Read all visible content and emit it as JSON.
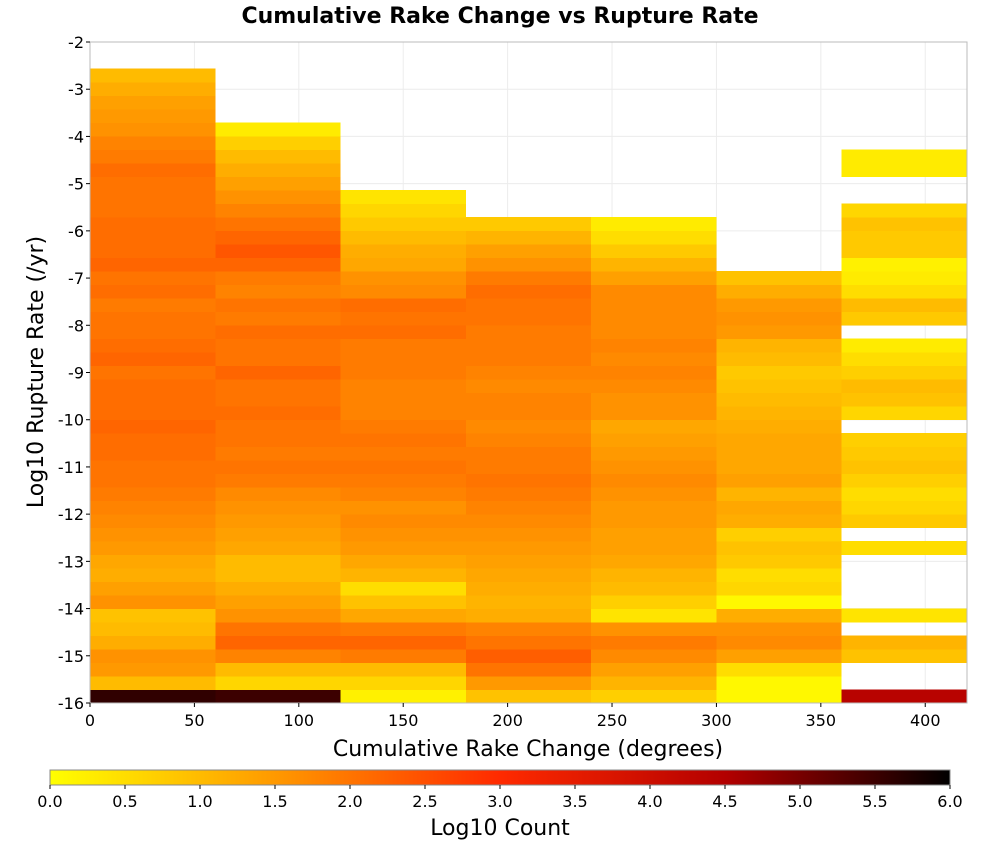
{
  "chart_data": {
    "type": "heatmap",
    "title": "Cumulative Rake Change vs Rupture Rate",
    "xlabel": "Cumulative Rake Change (degrees)",
    "ylabel": "Log10 Rupture Rate (/yr)",
    "xlim": [
      0,
      420
    ],
    "ylim": [
      -16,
      -2
    ],
    "x_ticks": [
      "0",
      "50",
      "100",
      "150",
      "200",
      "250",
      "300",
      "350",
      "400"
    ],
    "y_ticks": [
      "-2",
      "-3",
      "-4",
      "-5",
      "-6",
      "-7",
      "-8",
      "-9",
      "-10",
      "-11",
      "-12",
      "-13",
      "-14",
      "-15",
      "-16"
    ],
    "x_bin_edges": [
      0,
      60,
      120,
      180,
      240,
      300,
      360,
      420
    ],
    "y_bin_size": 0.286,
    "grid": true,
    "colorbar": {
      "label": "Log10 Count",
      "range": [
        0.0,
        6.0
      ],
      "ticks": [
        "0.0",
        "0.5",
        "1.0",
        "1.5",
        "2.0",
        "2.5",
        "3.0",
        "3.5",
        "4.0",
        "4.5",
        "5.0",
        "5.5",
        "6.0"
      ],
      "colormap": [
        "#ffff00",
        "#ff9900",
        "#ff2a00",
        "#b30000",
        "#000000"
      ]
    },
    "columns": [
      {
        "x0": 0,
        "x1": 60,
        "values": [
          5.6,
          1.0,
          1.5,
          1.6,
          1.2,
          1.0,
          0.9,
          1.6,
          1.4,
          1.2,
          1.3,
          1.5,
          1.6,
          1.7,
          1.8,
          1.9,
          2.0,
          2.0,
          2.1,
          2.1,
          2.2,
          2.1,
          2.1,
          2.1,
          2.0,
          2.2,
          2.1,
          2.0,
          2.0,
          1.9,
          2.1,
          2.0,
          2.2,
          2.1,
          2.1,
          2.1,
          2.0,
          2.0,
          2.0,
          2.1,
          1.9,
          1.8,
          1.6,
          1.5,
          1.4,
          1.2,
          1.0
        ]
      },
      {
        "x0": 60,
        "x1": 120,
        "values": [
          5.5,
          0.6,
          1.0,
          1.8,
          2.2,
          2.0,
          1.6,
          1.4,
          1.2,
          1.0,
          1.0,
          1.3,
          1.4,
          1.5,
          1.6,
          1.7,
          1.9,
          2.0,
          1.9,
          2.0,
          2.0,
          2.1,
          2.0,
          2.0,
          2.2,
          2.0,
          2.0,
          2.1,
          1.9,
          2.0,
          1.8,
          1.9,
          2.2,
          2.4,
          2.2,
          2.0,
          1.8,
          1.6,
          1.4,
          1.2,
          1.0,
          0.7,
          0.3
        ]
      },
      {
        "x0": 120,
        "x1": 180,
        "values": [
          0.2,
          0.6,
          1.0,
          1.9,
          2.2,
          1.9,
          1.3,
          0.9,
          0.5,
          1.1,
          1.3,
          1.5,
          1.6,
          1.7,
          1.6,
          1.8,
          1.9,
          2.0,
          1.9,
          2.0,
          1.9,
          1.8,
          1.8,
          1.8,
          1.9,
          1.9,
          1.9,
          2.1,
          2.0,
          2.1,
          1.7,
          1.6,
          1.3,
          1.2,
          1.0,
          0.8,
          0.6,
          0.4
        ]
      },
      {
        "x0": 180,
        "x1": 240,
        "values": [
          0.9,
          1.5,
          2.0,
          2.3,
          2.0,
          1.8,
          1.2,
          1.1,
          1.2,
          1.3,
          1.4,
          1.5,
          1.6,
          1.7,
          1.8,
          1.9,
          2.0,
          1.9,
          1.9,
          1.8,
          1.7,
          1.8,
          1.8,
          1.7,
          1.8,
          1.9,
          1.9,
          1.9,
          2.0,
          2.0,
          2.1,
          1.9,
          1.6,
          1.4,
          1.1,
          0.8
        ]
      },
      {
        "x0": 240,
        "x1": 300,
        "values": [
          0.7,
          1.1,
          1.4,
          1.7,
          1.9,
          1.6,
          0.4,
          0.7,
          1.0,
          1.1,
          1.3,
          1.4,
          1.4,
          1.5,
          1.5,
          1.6,
          1.7,
          1.6,
          1.5,
          1.4,
          1.3,
          1.6,
          1.6,
          1.7,
          1.8,
          1.7,
          1.8,
          1.7,
          1.7,
          1.7,
          1.7,
          1.4,
          1.1,
          0.8,
          0.5,
          0.3
        ]
      },
      {
        "x0": 300,
        "x1": 360,
        "values": [
          0.1,
          0.1,
          0.5,
          1.4,
          1.7,
          1.6,
          1.2,
          0.1,
          0.6,
          0.5,
          0.8,
          0.9,
          0.7,
          1.2,
          1.3,
          1.1,
          1.4,
          1.3,
          1.3,
          1.3,
          1.2,
          1.1,
          1.0,
          0.9,
          0.8,
          1.0,
          1.1,
          1.5,
          1.6,
          1.5,
          1.2,
          0.9
        ]
      },
      {
        "x0": 360,
        "x1": 420,
        "values": [
          4.4,
          null,
          null,
          0.9,
          1.1,
          null,
          0.4,
          null,
          null,
          null,
          null,
          0.5,
          null,
          0.8,
          0.6,
          0.5,
          0.7,
          0.9,
          0.8,
          0.7,
          null,
          0.6,
          0.9,
          1.0,
          0.7,
          0.5,
          0.3,
          null,
          0.8,
          1.0,
          0.5,
          0.3,
          0.2,
          0.8,
          0.8,
          0.9,
          0.6,
          null,
          null,
          0.3,
          0.3
        ]
      }
    ]
  }
}
